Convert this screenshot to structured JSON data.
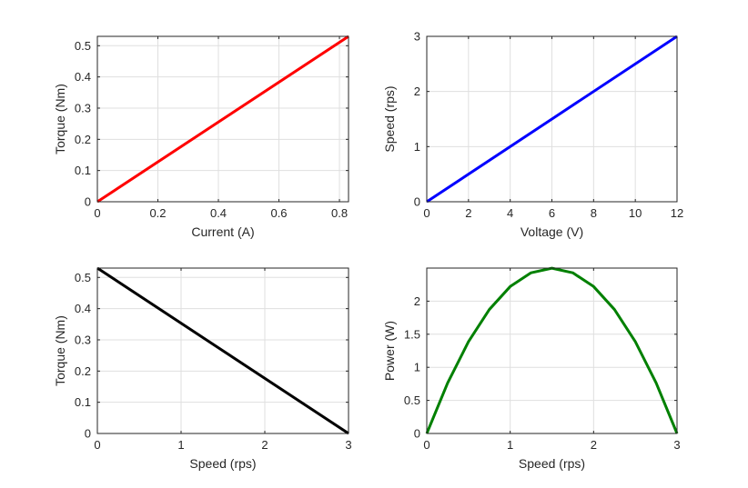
{
  "chart_data": [
    {
      "type": "line",
      "xlabel": "Current (A)",
      "ylabel": "Torque (Nm)",
      "xlim": [
        0,
        0.83
      ],
      "ylim": [
        0,
        0.53
      ],
      "xticks": [
        "0",
        "0.2",
        "0.4",
        "0.6",
        "0.8"
      ],
      "xtick_values": [
        0,
        0.2,
        0.4,
        0.6,
        0.8
      ],
      "yticks": [
        "0",
        "0.1",
        "0.2",
        "0.3",
        "0.4",
        "0.5"
      ],
      "ytick_values": [
        0,
        0.1,
        0.2,
        0.3,
        0.4,
        0.5
      ],
      "grid": true,
      "series": [
        {
          "color": "#ff0000",
          "x": [
            0,
            0.83
          ],
          "y": [
            0,
            0.53
          ]
        }
      ]
    },
    {
      "type": "line",
      "xlabel": "Voltage (V)",
      "ylabel": "Speed (rps)",
      "xlim": [
        0,
        12
      ],
      "ylim": [
        0,
        3
      ],
      "xticks": [
        "0",
        "2",
        "4",
        "6",
        "8",
        "10",
        "12"
      ],
      "xtick_values": [
        0,
        2,
        4,
        6,
        8,
        10,
        12
      ],
      "yticks": [
        "0",
        "1",
        "2",
        "3"
      ],
      "ytick_values": [
        0,
        1,
        2,
        3
      ],
      "grid": true,
      "series": [
        {
          "color": "#0000ff",
          "x": [
            0,
            12
          ],
          "y": [
            0,
            3
          ]
        }
      ]
    },
    {
      "type": "line",
      "xlabel": "Speed (rps)",
      "ylabel": "Torque (Nm)",
      "xlim": [
        0,
        3
      ],
      "ylim": [
        0,
        0.53
      ],
      "xticks": [
        "0",
        "1",
        "2",
        "3"
      ],
      "xtick_values": [
        0,
        1,
        2,
        3
      ],
      "yticks": [
        "0",
        "0.1",
        "0.2",
        "0.3",
        "0.4",
        "0.5"
      ],
      "ytick_values": [
        0,
        0.1,
        0.2,
        0.3,
        0.4,
        0.5
      ],
      "grid": true,
      "series": [
        {
          "color": "#000000",
          "x": [
            0,
            3
          ],
          "y": [
            0.53,
            0
          ]
        }
      ]
    },
    {
      "type": "line",
      "xlabel": "Speed (rps)",
      "ylabel": "Power (W)",
      "xlim": [
        0,
        3
      ],
      "ylim": [
        0,
        2.5
      ],
      "xticks": [
        "0",
        "1",
        "2",
        "3"
      ],
      "xtick_values": [
        0,
        1,
        2,
        3
      ],
      "yticks": [
        "0",
        "0.5",
        "1",
        "1.5",
        "2"
      ],
      "ytick_values": [
        0,
        0.5,
        1,
        1.5,
        2
      ],
      "grid": true,
      "series": [
        {
          "color": "#008000",
          "x": [
            0,
            0.25,
            0.5,
            0.75,
            1,
            1.25,
            1.5,
            1.75,
            2,
            2.25,
            2.5,
            2.75,
            3
          ],
          "y": [
            0,
            0.763,
            1.388,
            1.874,
            2.221,
            2.429,
            2.498,
            2.429,
            2.221,
            1.874,
            1.388,
            0.763,
            0
          ]
        }
      ]
    }
  ]
}
